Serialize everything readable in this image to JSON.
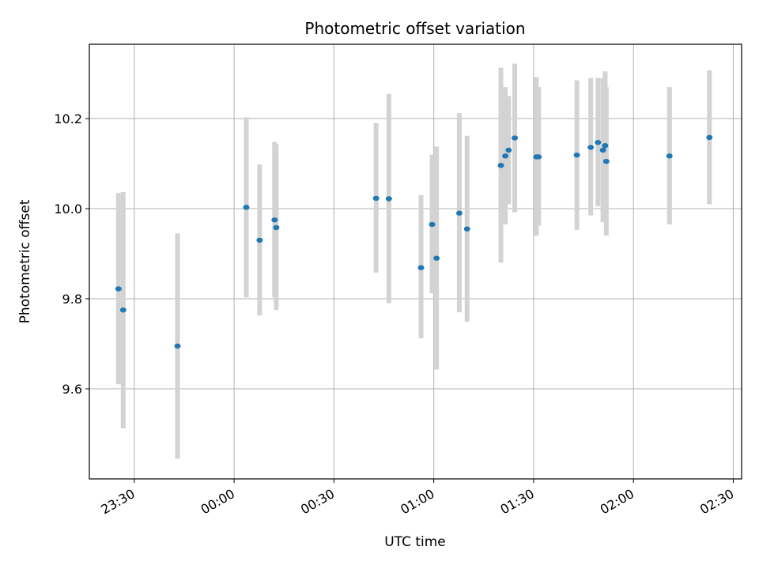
{
  "chart_data": {
    "type": "scatter",
    "title": "Photometric offset variation",
    "xlabel": "UTC time",
    "ylabel": "Photometric offset",
    "x_tick_labels": [
      "23:30",
      "00:00",
      "00:30",
      "01:00",
      "01:30",
      "02:00",
      "02:30"
    ],
    "x_tick_times": [
      "23:30",
      "00:00",
      "00:30",
      "01:00",
      "01:30",
      "02:00",
      "02:30"
    ],
    "xlim": [
      "23:16:30",
      "02:32:30"
    ],
    "y_ticks": [
      9.6,
      9.8,
      10.0,
      10.2
    ],
    "y_tick_labels": [
      "9.6",
      "9.8",
      "10.0",
      "10.2"
    ],
    "ylim": [
      9.4,
      10.365
    ],
    "grid": true,
    "colors": {
      "marker": "#1f77b4",
      "errorbar": "#d3d3d3",
      "grid": "#b0b0b0"
    },
    "points": [
      {
        "time": "23:25:15",
        "y": 9.822,
        "ylow": 9.61,
        "yhigh": 10.035
      },
      {
        "time": "23:26:40",
        "y": 9.775,
        "ylow": 9.512,
        "yhigh": 10.037
      },
      {
        "time": "23:43:00",
        "y": 9.695,
        "ylow": 9.445,
        "yhigh": 9.945
      },
      {
        "time": "00:03:40",
        "y": 10.003,
        "ylow": 9.803,
        "yhigh": 10.203
      },
      {
        "time": "00:07:40",
        "y": 9.93,
        "ylow": 9.763,
        "yhigh": 10.098
      },
      {
        "time": "00:12:10",
        "y": 9.975,
        "ylow": 9.803,
        "yhigh": 10.148
      },
      {
        "time": "00:12:40",
        "y": 9.958,
        "ylow": 9.775,
        "yhigh": 10.143
      },
      {
        "time": "00:42:40",
        "y": 10.023,
        "ylow": 9.858,
        "yhigh": 10.19
      },
      {
        "time": "00:46:30",
        "y": 10.022,
        "ylow": 9.79,
        "yhigh": 10.255
      },
      {
        "time": "00:56:10",
        "y": 9.869,
        "ylow": 9.712,
        "yhigh": 10.03
      },
      {
        "time": "00:59:30",
        "y": 9.965,
        "ylow": 9.812,
        "yhigh": 10.12
      },
      {
        "time": "01:00:50",
        "y": 9.89,
        "ylow": 9.643,
        "yhigh": 10.138
      },
      {
        "time": "01:07:40",
        "y": 9.99,
        "ylow": 9.77,
        "yhigh": 10.212
      },
      {
        "time": "01:10:00",
        "y": 9.955,
        "ylow": 9.749,
        "yhigh": 10.162
      },
      {
        "time": "01:20:10",
        "y": 10.096,
        "ylow": 9.88,
        "yhigh": 10.313
      },
      {
        "time": "01:21:30",
        "y": 10.117,
        "ylow": 9.965,
        "yhigh": 10.27
      },
      {
        "time": "01:22:30",
        "y": 10.13,
        "ylow": 10.01,
        "yhigh": 10.25
      },
      {
        "time": "01:24:20",
        "y": 10.157,
        "ylow": 9.992,
        "yhigh": 10.322
      },
      {
        "time": "01:30:50",
        "y": 10.115,
        "ylow": 9.94,
        "yhigh": 10.292
      },
      {
        "time": "01:31:30",
        "y": 10.115,
        "ylow": 9.962,
        "yhigh": 10.27
      },
      {
        "time": "01:43:00",
        "y": 10.119,
        "ylow": 9.953,
        "yhigh": 10.285
      },
      {
        "time": "01:47:10",
        "y": 10.136,
        "ylow": 9.985,
        "yhigh": 10.29
      },
      {
        "time": "01:49:20",
        "y": 10.147,
        "ylow": 10.005,
        "yhigh": 10.29
      },
      {
        "time": "01:50:50",
        "y": 10.13,
        "ylow": 9.97,
        "yhigh": 10.29
      },
      {
        "time": "01:51:30",
        "y": 10.14,
        "ylow": 9.978,
        "yhigh": 10.305
      },
      {
        "time": "01:51:50",
        "y": 10.105,
        "ylow": 9.94,
        "yhigh": 10.27
      },
      {
        "time": "02:10:50",
        "y": 10.117,
        "ylow": 9.965,
        "yhigh": 10.27
      },
      {
        "time": "02:22:50",
        "y": 10.158,
        "ylow": 10.01,
        "yhigh": 10.307
      }
    ]
  }
}
